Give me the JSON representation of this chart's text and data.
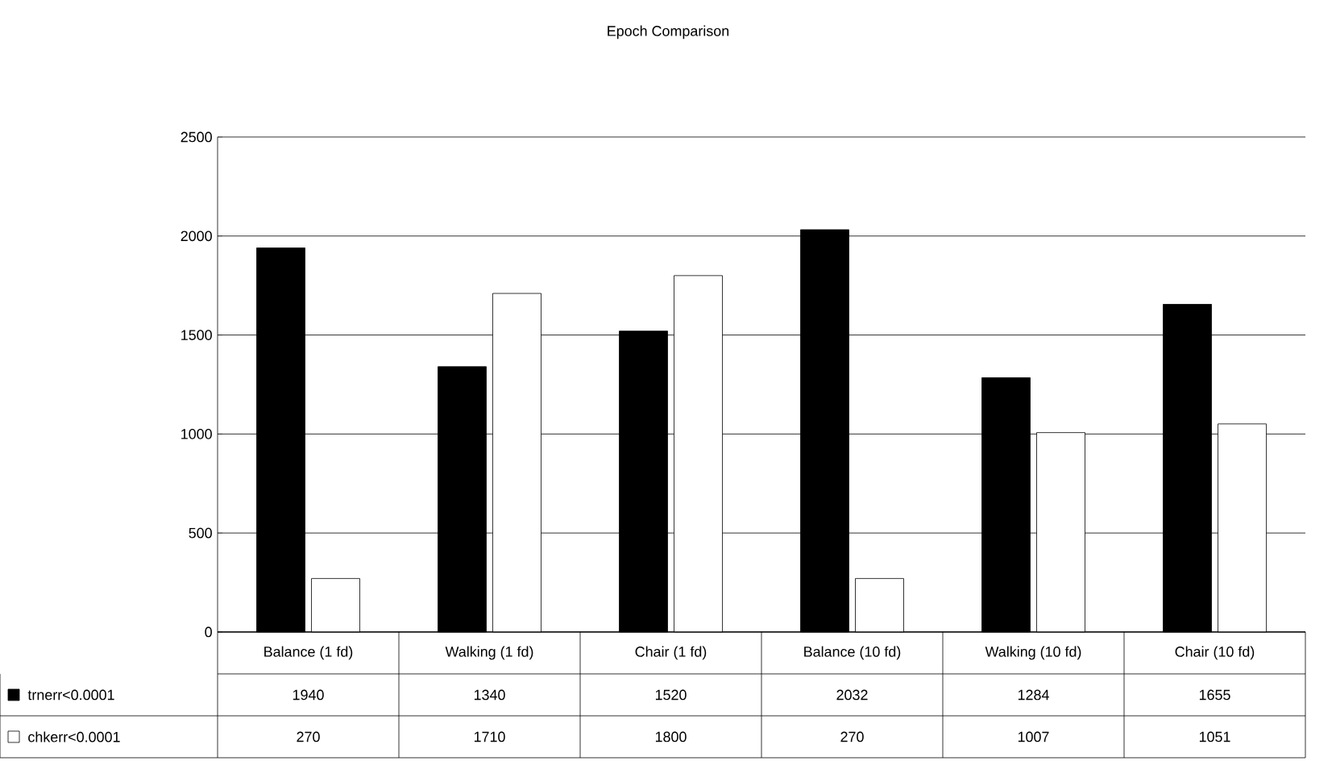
{
  "chart_data": {
    "type": "bar",
    "title": "Epoch Comparison",
    "categories": [
      "Balance (1 fd)",
      "Walking (1 fd)",
      "Chair (1 fd)",
      "Balance (10 fd)",
      "Walking (10 fd)",
      "Chair (10 fd)"
    ],
    "series": [
      {
        "name": "trnerr<0.0001",
        "color": "#000000",
        "values": [
          1940,
          1340,
          1520,
          2032,
          1284,
          1655
        ]
      },
      {
        "name": "chkerr<0.0001",
        "color": "#ffffff",
        "values": [
          270,
          1710,
          1800,
          270,
          1007,
          1051
        ]
      }
    ],
    "ylim": [
      0,
      2500
    ],
    "yticks": [
      0,
      500,
      1000,
      1500,
      2000,
      2500
    ],
    "grid": "y",
    "legend": "bottom left",
    "data_labels": true
  }
}
